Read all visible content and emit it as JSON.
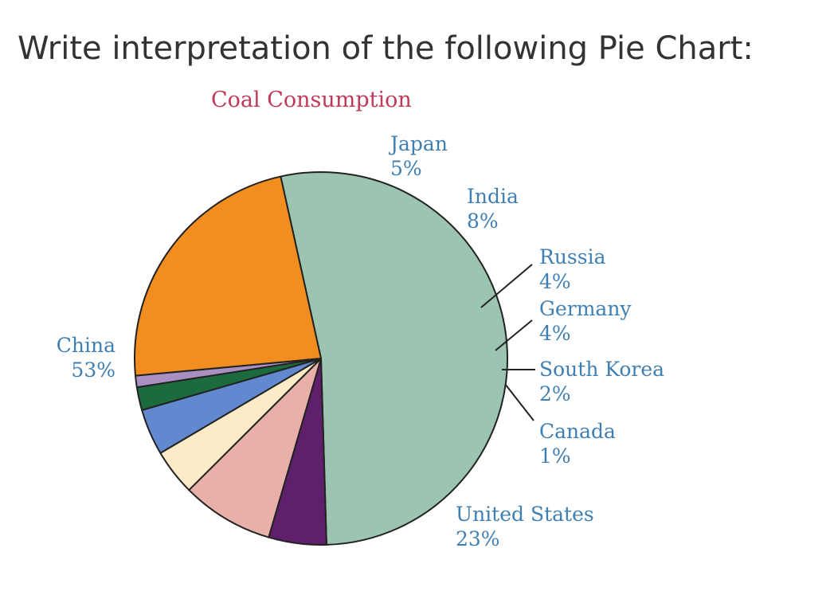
{
  "question": "Write interpretation of the following Pie Chart:",
  "colors": {
    "question_text": "#333333",
    "title_text": "#c0395a",
    "label_text": "#3f7fb2",
    "outline": "#222222"
  },
  "chart_data": {
    "type": "pie",
    "title": "Coal Consumption",
    "slices": [
      {
        "name": "China",
        "value_label": "53%",
        "value": 53,
        "color": "#9cc5b1"
      },
      {
        "name": "Japan",
        "value_label": "5%",
        "value": 5,
        "color": "#5e1f6b"
      },
      {
        "name": "India",
        "value_label": "8%",
        "value": 8,
        "color": "#e8b0a8"
      },
      {
        "name": "Russia",
        "value_label": "4%",
        "value": 4,
        "color": "#fdebc8"
      },
      {
        "name": "Germany",
        "value_label": "4%",
        "value": 4,
        "color": "#6289cf"
      },
      {
        "name": "South Korea",
        "value_label": "2%",
        "value": 2,
        "color": "#1c6b3e"
      },
      {
        "name": "Canada",
        "value_label": "1%",
        "value": 1,
        "color": "#a98fc2"
      },
      {
        "name": "United States",
        "value_label": "23%",
        "value": 23,
        "color": "#f28d1f"
      }
    ],
    "legend": "none",
    "labels": "outside slices"
  }
}
